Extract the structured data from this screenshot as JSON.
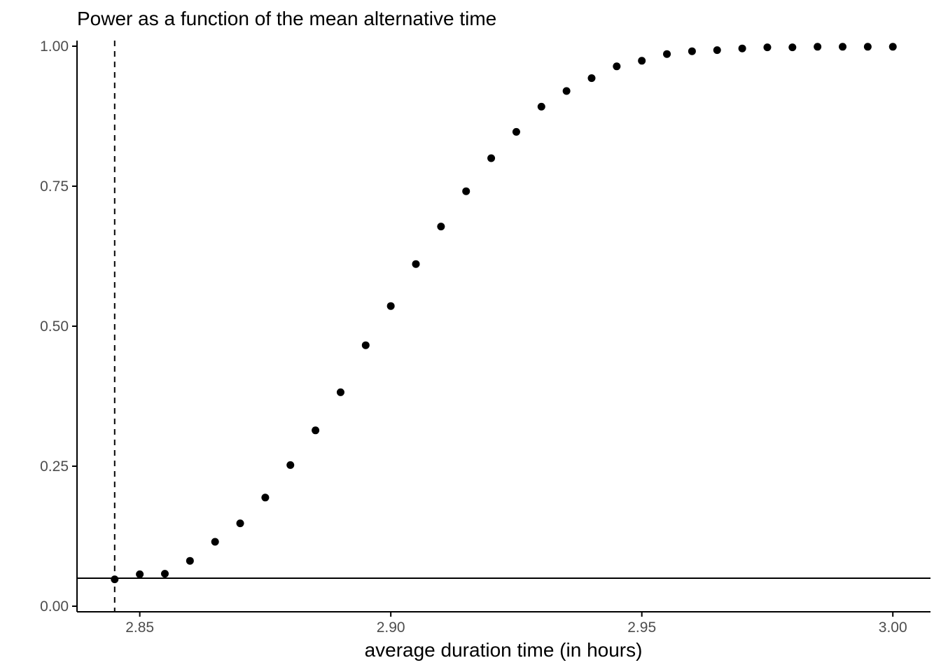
{
  "chart_data": {
    "type": "scatter",
    "title": "Power as a function of the mean alternative time",
    "subtitle": "",
    "xlabel": "average duration time (in hours)",
    "ylabel": "",
    "xlim": [
      2.8375,
      3.0075
    ],
    "ylim": [
      -0.01,
      1.01
    ],
    "x_ticks": [
      2.85,
      2.9,
      2.95,
      3.0
    ],
    "x_tick_labels": [
      "2.85",
      "2.90",
      "2.95",
      "3.00"
    ],
    "y_ticks": [
      0,
      0.25,
      0.5,
      0.75,
      1.0
    ],
    "y_tick_labels": [
      "0.00",
      "0.25",
      "0.50",
      "0.75",
      "1.00"
    ],
    "grid": false,
    "legend": "none",
    "series": [
      {
        "x": [
          2.845,
          2.85,
          2.855,
          2.86,
          2.865,
          2.87,
          2.875,
          2.88,
          2.885,
          2.89,
          2.895,
          2.9,
          2.905,
          2.91,
          2.915,
          2.92,
          2.925,
          2.93,
          2.935,
          2.94,
          2.945,
          2.95,
          2.955,
          2.96,
          2.965,
          2.97,
          2.975,
          2.98,
          2.985,
          2.99,
          2.995,
          3.0
        ],
        "y": [
          0.048,
          0.057,
          0.058,
          0.081,
          0.115,
          0.148,
          0.194,
          0.252,
          0.314,
          0.382,
          0.466,
          0.536,
          0.611,
          0.678,
          0.741,
          0.8,
          0.847,
          0.892,
          0.92,
          0.943,
          0.964,
          0.974,
          0.986,
          0.991,
          0.993,
          0.996,
          0.998,
          0.998,
          0.999,
          0.999,
          0.999,
          0.999
        ],
        "color": "#000000"
      }
    ],
    "reference_lines": [
      {
        "orientation": "horizontal",
        "value": 0.05,
        "style": "solid",
        "color": "#000000"
      },
      {
        "orientation": "vertical",
        "value": 2.845,
        "style": "dashed",
        "color": "#000000"
      }
    ]
  }
}
